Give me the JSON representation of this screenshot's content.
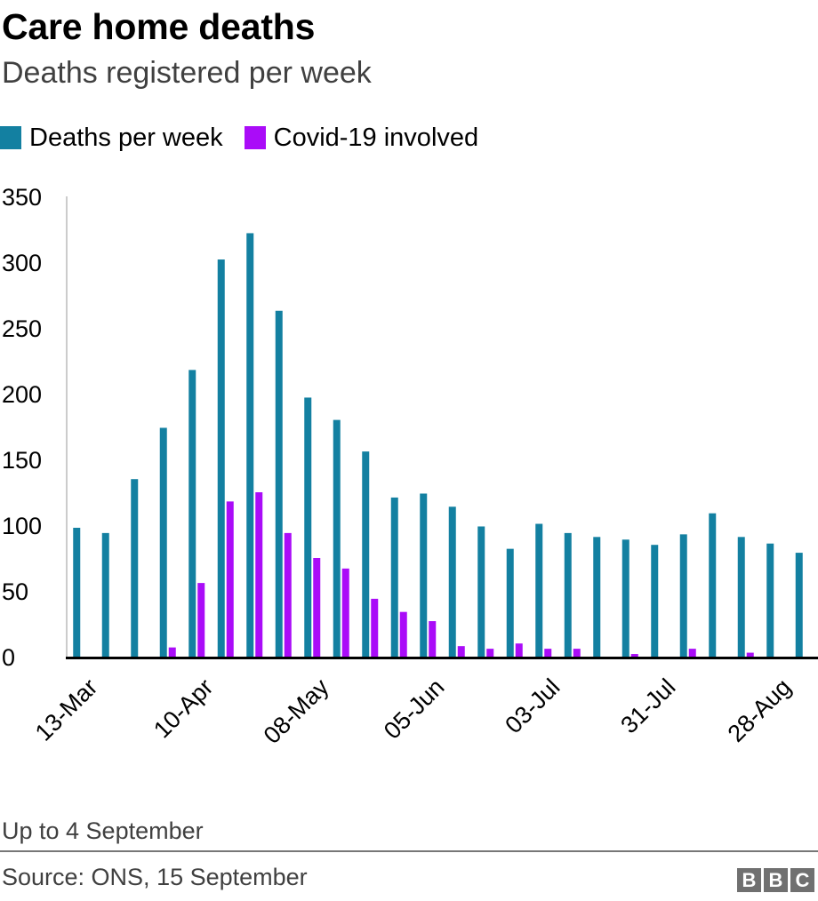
{
  "header": {
    "title": "Care home deaths",
    "subtitle": "Deaths registered per week"
  },
  "legend": [
    {
      "label": "Deaths per week",
      "color": "#1380A1"
    },
    {
      "label": "Covid-19 involved",
      "color": "#AA0CF8"
    }
  ],
  "footer": {
    "note": "Up to 4 September",
    "source": "Source: ONS, 15 September",
    "logo_letters": [
      "B",
      "B",
      "C"
    ]
  },
  "chart_data": {
    "type": "bar",
    "title": "Care home deaths",
    "subtitle": "Deaths registered per week",
    "xlabel": "",
    "ylabel": "",
    "ylim": [
      0,
      350
    ],
    "yticks": [
      0,
      50,
      100,
      150,
      200,
      250,
      300,
      350
    ],
    "grid": false,
    "legend_position": "top-left",
    "categories": [
      "13-Mar",
      "20-Mar",
      "27-Mar",
      "03-Apr",
      "10-Apr",
      "17-Apr",
      "24-Apr",
      "01-May",
      "08-May",
      "15-May",
      "22-May",
      "29-May",
      "05-Jun",
      "12-Jun",
      "19-Jun",
      "26-Jun",
      "03-Jul",
      "10-Jul",
      "17-Jul",
      "24-Jul",
      "31-Jul",
      "07-Aug",
      "14-Aug",
      "21-Aug",
      "28-Aug",
      "04-Sep"
    ],
    "visible_tick_labels": [
      "13-Mar",
      "10-Apr",
      "08-May",
      "05-Jun",
      "03-Jul",
      "31-Jul",
      "28-Aug"
    ],
    "series": [
      {
        "name": "Deaths per week",
        "color": "#1380A1",
        "values": [
          98,
          94,
          135,
          174,
          218,
          302,
          322,
          263,
          197,
          180,
          156,
          121,
          124,
          114,
          99,
          82,
          101,
          94,
          91,
          89,
          85,
          93,
          109,
          91,
          86,
          79
        ]
      },
      {
        "name": "Covid-19 involved",
        "color": "#AA0CF8",
        "values": [
          0,
          0,
          0,
          7,
          56,
          118,
          125,
          94,
          75,
          67,
          44,
          34,
          27,
          8,
          6,
          10,
          6,
          6,
          0,
          2,
          0,
          6,
          0,
          3,
          0,
          0
        ]
      }
    ]
  }
}
